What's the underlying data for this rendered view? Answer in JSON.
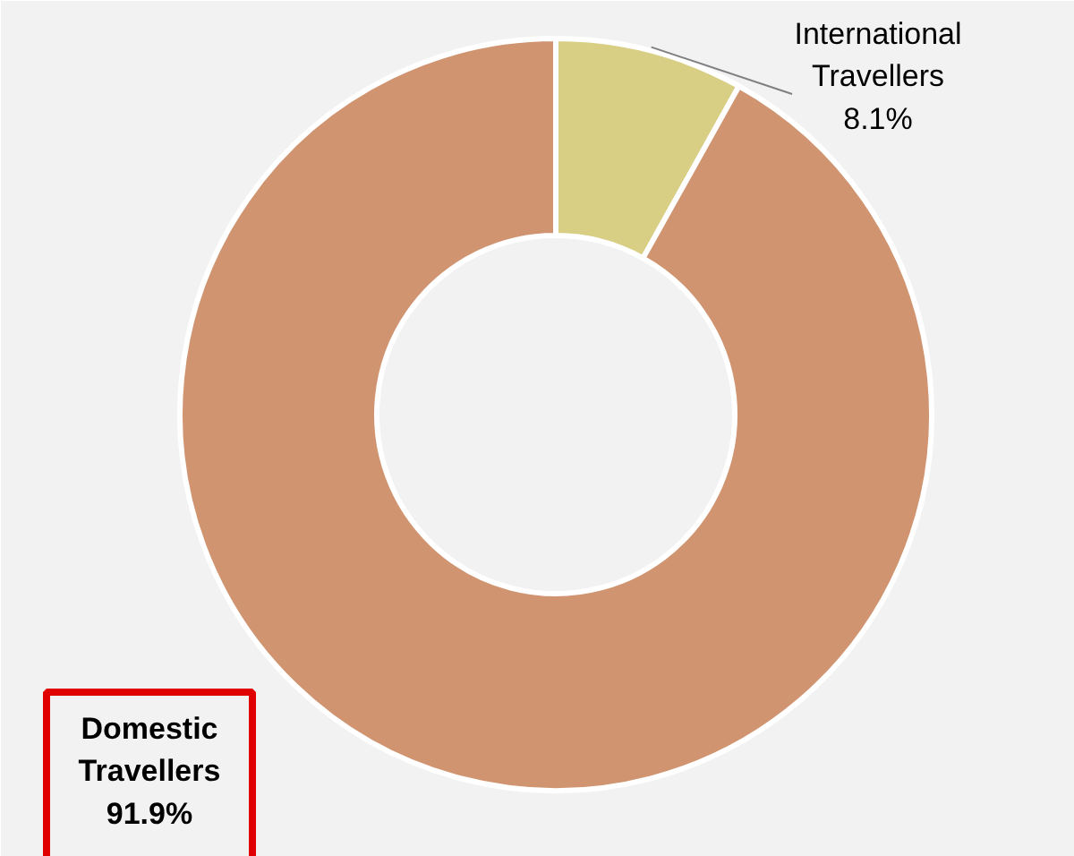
{
  "chart_data": {
    "type": "donut",
    "categories": [
      "International\nTravellers",
      "Domestic\nTravellers"
    ],
    "values": [
      8.1,
      91.9
    ],
    "colors": [
      "#d8cf84",
      "#d09570"
    ],
    "value_labels": [
      "8.1%",
      "91.9%"
    ]
  }
}
